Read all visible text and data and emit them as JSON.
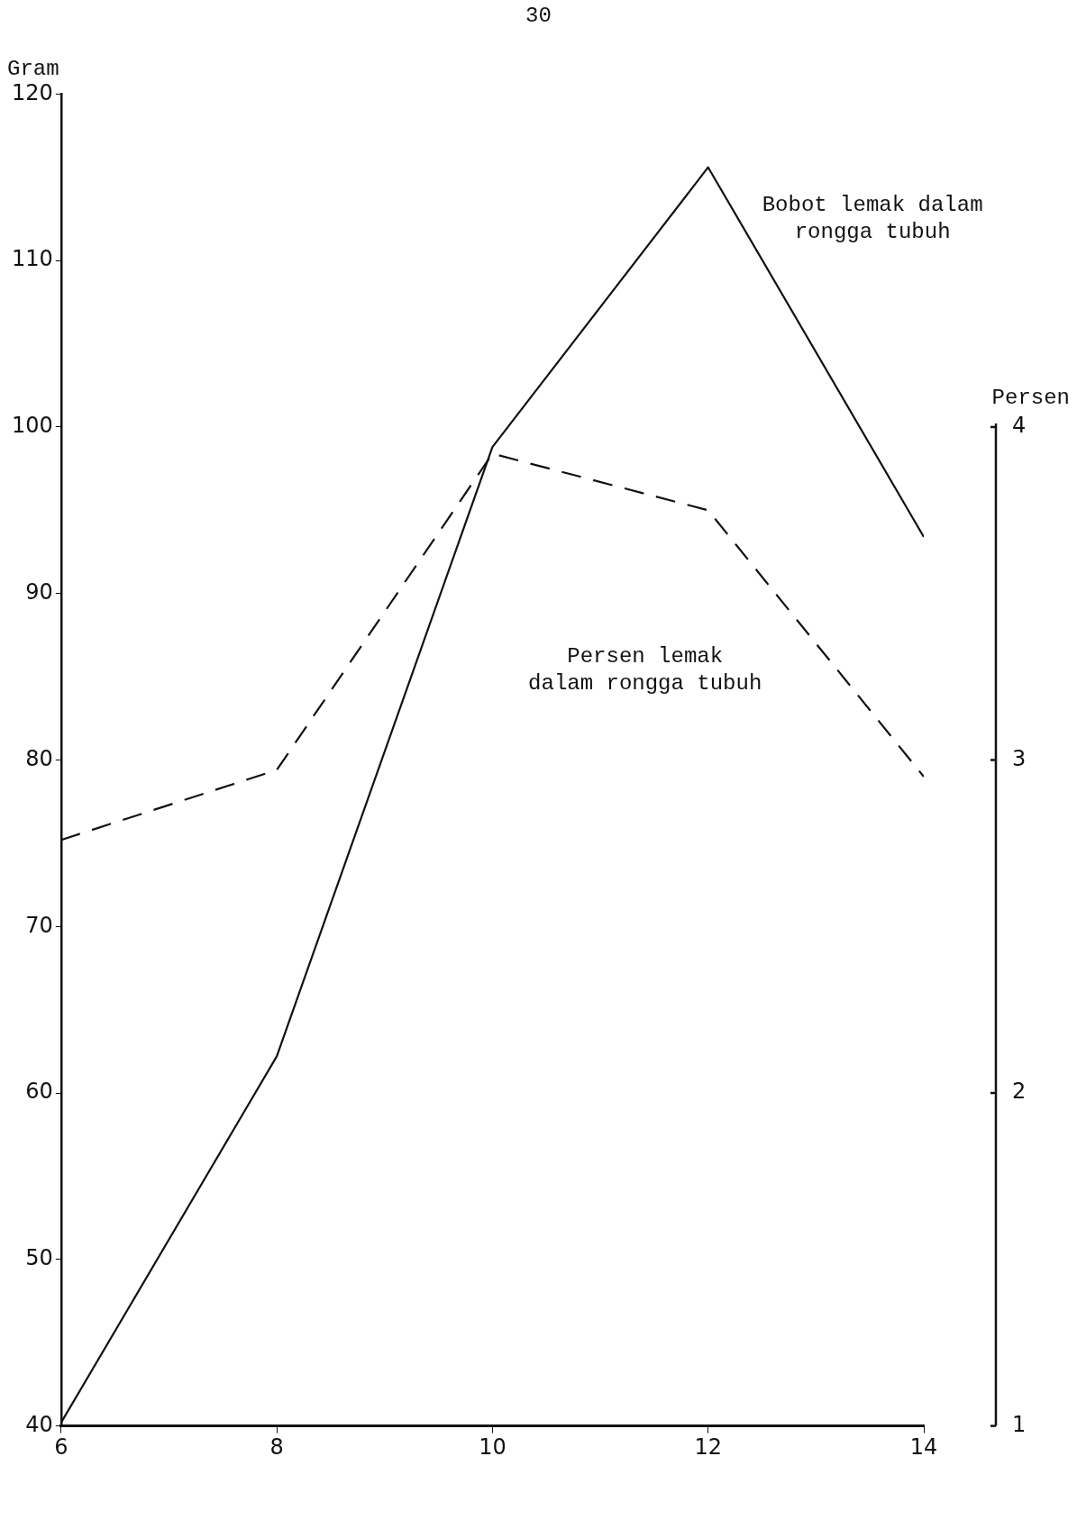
{
  "chart_data": {
    "type": "line",
    "ylabel": "Gram",
    "y2label": "Persen",
    "annotations": [
      "30"
    ],
    "x": [
      6,
      8,
      10,
      12,
      14
    ],
    "xlim": [
      6,
      14
    ],
    "xticks": [
      6,
      8,
      10,
      12,
      14
    ],
    "ylim": [
      40,
      120
    ],
    "yticks": [
      40,
      50,
      60,
      70,
      80,
      90,
      100,
      110,
      120
    ],
    "y2lim": [
      1,
      5
    ],
    "y2ticks": [
      1,
      2,
      3,
      4
    ],
    "series": [
      {
        "name": "Bobot lemak dalam\nrongga tubuh",
        "color": "#111111",
        "values": [
          40.2,
          62.2,
          98.8,
          115.6,
          93.4
        ],
        "line_style": "solid"
      },
      {
        "name": "Persen lemak\ndalam rongga tubuh",
        "color": "#111111",
        "values": [
          2.76,
          2.97,
          3.92,
          3.75,
          2.95
        ],
        "axis": "y2",
        "line_style": "dashed"
      }
    ],
    "grid": false,
    "legend": false,
    "marker": "none"
  }
}
